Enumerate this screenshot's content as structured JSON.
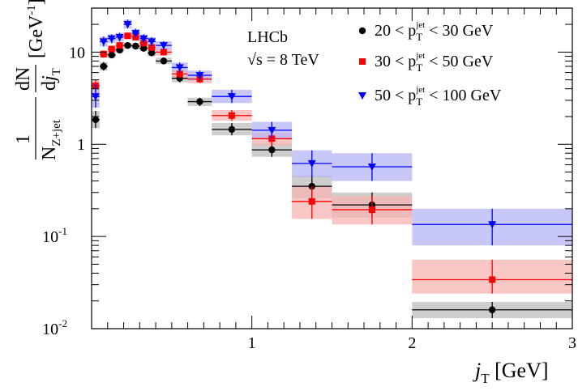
{
  "chart_data": {
    "type": "scatter",
    "experiment": "LHCb",
    "energy_label": "√s = 8 TeV",
    "xlabel": "j_T [GeV]",
    "ylabel": "1/N_{Z+jet} dN/dj_T [GeV⁻¹]",
    "xlim": [
      0,
      3
    ],
    "ylim": [
      0.01,
      30
    ],
    "yscale": "log",
    "x_ticks": [
      {
        "value": 1,
        "label": "1"
      },
      {
        "value": 2,
        "label": "2"
      },
      {
        "value": 3,
        "label": "3"
      }
    ],
    "y_ticks": [
      {
        "value": 0.01,
        "label": "10",
        "exp": "-2"
      },
      {
        "value": 0.1,
        "label": "10",
        "exp": "-1"
      },
      {
        "value": 1,
        "label": "1",
        "exp": ""
      },
      {
        "value": 10,
        "label": "10",
        "exp": ""
      }
    ],
    "legend_position": "top-right",
    "series": [
      {
        "name": "20 < p_T^jet < 30 GeV",
        "legend_text": "20 < p",
        "legend_sub": "T",
        "legend_sup": "jet",
        "legend_tail": " < 30 GeV",
        "color": "#000000",
        "marker": "circle",
        "points": [
          {
            "xl": 0.0,
            "xh": 0.05,
            "y": 1.85,
            "ylo": 1.5,
            "yhi": 2.3
          },
          {
            "xl": 0.05,
            "xh": 0.1,
            "y": 7.0,
            "ylo": 6.3,
            "yhi": 7.8
          },
          {
            "xl": 0.1,
            "xh": 0.15,
            "y": 9.3,
            "ylo": 8.6,
            "yhi": 10.1
          },
          {
            "xl": 0.15,
            "xh": 0.2,
            "y": 10.5,
            "ylo": 9.8,
            "yhi": 11.3
          },
          {
            "xl": 0.2,
            "xh": 0.25,
            "y": 11.8,
            "ylo": 11.0,
            "yhi": 12.6
          },
          {
            "xl": 0.25,
            "xh": 0.3,
            "y": 11.6,
            "ylo": 10.8,
            "yhi": 12.5
          },
          {
            "xl": 0.3,
            "xh": 0.35,
            "y": 11.0,
            "ylo": 10.2,
            "yhi": 11.9
          },
          {
            "xl": 0.35,
            "xh": 0.4,
            "y": 9.8,
            "ylo": 9.0,
            "yhi": 10.7
          },
          {
            "xl": 0.4,
            "xh": 0.5,
            "y": 8.0,
            "ylo": 7.4,
            "yhi": 8.7
          },
          {
            "xl": 0.5,
            "xh": 0.6,
            "y": 5.2,
            "ylo": 4.7,
            "yhi": 5.7
          },
          {
            "xl": 0.6,
            "xh": 0.75,
            "y": 2.9,
            "ylo": 2.6,
            "yhi": 3.2
          },
          {
            "xl": 0.75,
            "xh": 1.0,
            "y": 1.45,
            "ylo": 1.25,
            "yhi": 1.7
          },
          {
            "xl": 1.0,
            "xh": 1.25,
            "y": 0.87,
            "ylo": 0.73,
            "yhi": 1.03
          },
          {
            "xl": 1.25,
            "xh": 1.5,
            "y": 0.35,
            "ylo": 0.26,
            "yhi": 0.46
          },
          {
            "xl": 1.5,
            "xh": 2.0,
            "y": 0.22,
            "ylo": 0.16,
            "yhi": 0.3
          },
          {
            "xl": 2.0,
            "xh": 3.0,
            "y": 0.016,
            "ylo": 0.013,
            "yhi": 0.0195
          }
        ]
      },
      {
        "name": "30 < p_T^jet < 50 GeV",
        "legend_text": "30 < p",
        "legend_sub": "T",
        "legend_sup": "jet",
        "legend_tail": " < 50 GeV",
        "color": "#ff0000",
        "marker": "square",
        "points": [
          {
            "xl": 0.0,
            "xh": 0.05,
            "y": 4.3,
            "ylo": 3.7,
            "yhi": 5.0
          },
          {
            "xl": 0.05,
            "xh": 0.1,
            "y": 9.5,
            "ylo": 8.7,
            "yhi": 10.4
          },
          {
            "xl": 0.1,
            "xh": 0.15,
            "y": 10.8,
            "ylo": 10.0,
            "yhi": 11.7
          },
          {
            "xl": 0.15,
            "xh": 0.2,
            "y": 11.8,
            "ylo": 10.9,
            "yhi": 12.8
          },
          {
            "xl": 0.2,
            "xh": 0.25,
            "y": 15.0,
            "ylo": 13.9,
            "yhi": 16.2
          },
          {
            "xl": 0.25,
            "xh": 0.3,
            "y": 14.5,
            "ylo": 13.4,
            "yhi": 15.7
          },
          {
            "xl": 0.3,
            "xh": 0.35,
            "y": 12.5,
            "ylo": 11.5,
            "yhi": 13.6
          },
          {
            "xl": 0.35,
            "xh": 0.4,
            "y": 11.2,
            "ylo": 10.3,
            "yhi": 12.2
          },
          {
            "xl": 0.4,
            "xh": 0.5,
            "y": 10.0,
            "ylo": 9.2,
            "yhi": 10.9
          },
          {
            "xl": 0.5,
            "xh": 0.6,
            "y": 5.8,
            "ylo": 5.2,
            "yhi": 6.4
          },
          {
            "xl": 0.6,
            "xh": 0.75,
            "y": 5.1,
            "ylo": 4.6,
            "yhi": 5.7
          },
          {
            "xl": 0.75,
            "xh": 1.0,
            "y": 2.05,
            "ylo": 1.8,
            "yhi": 2.35
          },
          {
            "xl": 1.0,
            "xh": 1.25,
            "y": 1.15,
            "ylo": 0.97,
            "yhi": 1.35
          },
          {
            "xl": 1.25,
            "xh": 1.5,
            "y": 0.24,
            "ylo": 0.155,
            "yhi": 0.35
          },
          {
            "xl": 1.5,
            "xh": 2.0,
            "y": 0.195,
            "ylo": 0.135,
            "yhi": 0.275
          },
          {
            "xl": 2.0,
            "xh": 3.0,
            "y": 0.034,
            "ylo": 0.024,
            "yhi": 0.056
          }
        ]
      },
      {
        "name": "50 < p_T^jet < 100 GeV",
        "legend_text": "50 < p",
        "legend_sub": "T",
        "legend_sup": "jet",
        "legend_tail": " < 100 GeV",
        "color": "#0000ff",
        "marker": "triangle-down",
        "points": [
          {
            "xl": 0.0,
            "xh": 0.05,
            "y": 3.3,
            "ylo": 2.5,
            "yhi": 4.5
          },
          {
            "xl": 0.05,
            "xh": 0.1,
            "y": 13.0,
            "ylo": 11.5,
            "yhi": 14.7
          },
          {
            "xl": 0.1,
            "xh": 0.15,
            "y": 14.0,
            "ylo": 12.5,
            "yhi": 15.6
          },
          {
            "xl": 0.15,
            "xh": 0.2,
            "y": 14.5,
            "ylo": 13.0,
            "yhi": 16.2
          },
          {
            "xl": 0.2,
            "xh": 0.25,
            "y": 20.0,
            "ylo": 18.0,
            "yhi": 22.5
          },
          {
            "xl": 0.25,
            "xh": 0.3,
            "y": 16.0,
            "ylo": 14.3,
            "yhi": 17.9
          },
          {
            "xl": 0.3,
            "xh": 0.35,
            "y": 14.0,
            "ylo": 12.5,
            "yhi": 15.6
          },
          {
            "xl": 0.35,
            "xh": 0.4,
            "y": 13.0,
            "ylo": 11.6,
            "yhi": 14.5
          },
          {
            "xl": 0.4,
            "xh": 0.5,
            "y": 11.8,
            "ylo": 10.6,
            "yhi": 13.1
          },
          {
            "xl": 0.5,
            "xh": 0.6,
            "y": 6.8,
            "ylo": 6.0,
            "yhi": 7.7
          },
          {
            "xl": 0.6,
            "xh": 0.75,
            "y": 5.6,
            "ylo": 4.9,
            "yhi": 6.3
          },
          {
            "xl": 0.75,
            "xh": 1.0,
            "y": 3.3,
            "ylo": 2.8,
            "yhi": 3.9
          },
          {
            "xl": 1.0,
            "xh": 1.25,
            "y": 1.42,
            "ylo": 1.15,
            "yhi": 1.75
          },
          {
            "xl": 1.25,
            "xh": 1.5,
            "y": 0.62,
            "ylo": 0.44,
            "yhi": 0.86
          },
          {
            "xl": 1.5,
            "xh": 2.0,
            "y": 0.57,
            "ylo": 0.4,
            "yhi": 0.8
          },
          {
            "xl": 2.0,
            "xh": 3.0,
            "y": 0.135,
            "ylo": 0.08,
            "yhi": 0.2
          }
        ]
      }
    ]
  }
}
